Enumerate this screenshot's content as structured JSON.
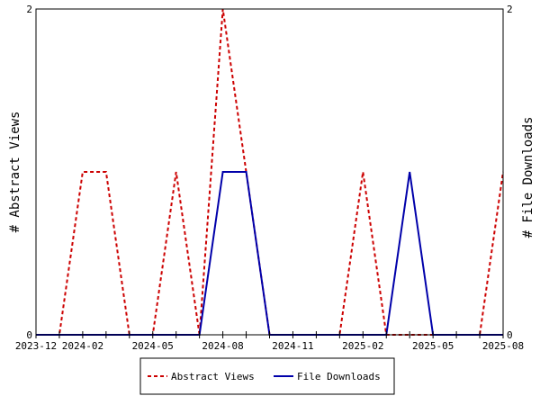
{
  "chart_data": {
    "type": "line",
    "x_tick_labels": [
      "2023-12",
      "2024-02",
      "2024-05",
      "2024-08",
      "2024-11",
      "2025-02",
      "2025-05",
      "2025-08"
    ],
    "x_months": [
      "2023-12",
      "2024-01",
      "2024-02",
      "2024-03",
      "2024-04",
      "2024-05",
      "2024-06",
      "2024-07",
      "2024-08",
      "2024-09",
      "2024-10",
      "2024-11",
      "2024-12",
      "2025-01",
      "2025-02",
      "2025-03",
      "2025-04",
      "2025-05",
      "2025-06",
      "2025-07",
      "2025-08"
    ],
    "series": [
      {
        "name": "Abstract Views",
        "color": "#cc0000",
        "dash": "dashed",
        "values": [
          0,
          0,
          1,
          1,
          0,
          0,
          1,
          0,
          2,
          1,
          0,
          0,
          0,
          0,
          1,
          0,
          0,
          0,
          0,
          0,
          1
        ]
      },
      {
        "name": "File Downloads",
        "color": "#0000aa",
        "dash": "solid",
        "values": [
          0,
          0,
          0,
          0,
          0,
          0,
          0,
          0,
          1,
          1,
          0,
          0,
          0,
          0,
          0,
          0,
          1,
          0,
          0,
          0,
          0
        ]
      }
    ],
    "ylabel_left": "# Abstract Views",
    "ylabel_right": "# File Downloads",
    "ylim": [
      0,
      2
    ],
    "y_tick_labels": [
      "0",
      "2"
    ],
    "legend_position": "bottom-center"
  }
}
